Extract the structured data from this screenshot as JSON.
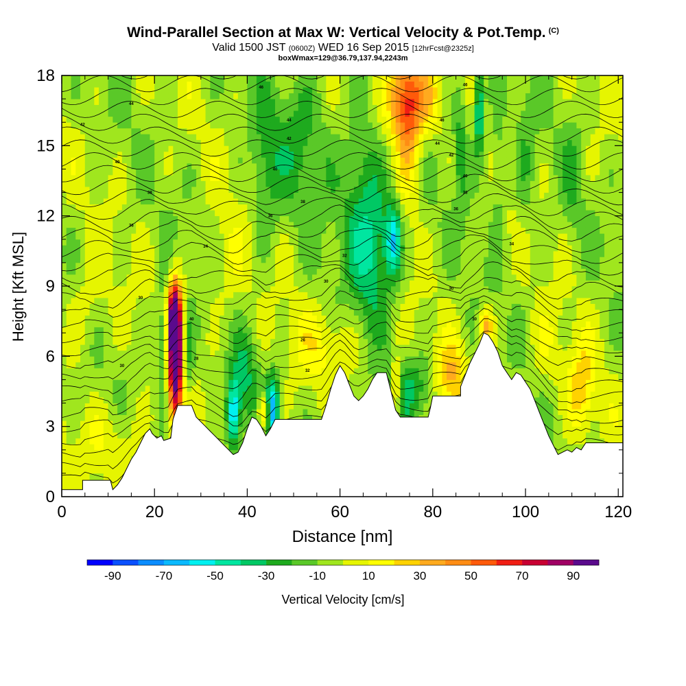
{
  "header": {
    "title": "Wind-Parallel Section at Max W: Vertical Velocity & Pot.Temp.",
    "title_suffix": "(C)",
    "subtitle_a": "Valid 1500 JST",
    "subtitle_b": "(0600Z)",
    "subtitle_c": "WED 16 Sep 2015",
    "subtitle_d": "[12hrFcst@2325z]",
    "box_info": "boxWmax=129@36.79,137.94,2243m"
  },
  "chart_data": {
    "type": "heatmap",
    "xlabel": "Distance [nm]",
    "ylabel": "Height [Kft MSL]",
    "xlim": [
      0,
      121
    ],
    "ylim": [
      0,
      18
    ],
    "x_ticks": [
      0,
      20,
      40,
      60,
      80,
      100,
      120
    ],
    "y_ticks": [
      0,
      3,
      6,
      9,
      12,
      15,
      18
    ],
    "colorbar": {
      "label": "Vertical Velocity [cm/s]",
      "tick_labels": [
        -90,
        -70,
        -50,
        -30,
        -10,
        10,
        30,
        50,
        70,
        90
      ],
      "bins": [
        {
          "range": [
            -100,
            -90
          ],
          "color": "#0000ff"
        },
        {
          "range": [
            -90,
            -80
          ],
          "color": "#0a50ff"
        },
        {
          "range": [
            -80,
            -70
          ],
          "color": "#0a8cff"
        },
        {
          "range": [
            -70,
            -60
          ],
          "color": "#0ab9ff"
        },
        {
          "range": [
            -60,
            -50
          ],
          "color": "#00f0f0"
        },
        {
          "range": [
            -50,
            -40
          ],
          "color": "#00e6a0"
        },
        {
          "range": [
            -40,
            -30
          ],
          "color": "#00c864"
        },
        {
          "range": [
            -30,
            -20
          ],
          "color": "#1eaa1e"
        },
        {
          "range": [
            -20,
            -10
          ],
          "color": "#5ac828"
        },
        {
          "range": [
            -10,
            0
          ],
          "color": "#a0e61e"
        },
        {
          "range": [
            0,
            10
          ],
          "color": "#e6f500"
        },
        {
          "range": [
            10,
            20
          ],
          "color": "#ffff00"
        },
        {
          "range": [
            20,
            30
          ],
          "color": "#ffd200"
        },
        {
          "range": [
            30,
            40
          ],
          "color": "#ffaa1e"
        },
        {
          "range": [
            40,
            50
          ],
          "color": "#ff8c14"
        },
        {
          "range": [
            50,
            60
          ],
          "color": "#ff5a0a"
        },
        {
          "range": [
            60,
            70
          ],
          "color": "#f01e14"
        },
        {
          "range": [
            70,
            80
          ],
          "color": "#c80032"
        },
        {
          "range": [
            80,
            90
          ],
          "color": "#a00064"
        },
        {
          "range": [
            90,
            100
          ],
          "color": "#5a0a8c"
        }
      ]
    },
    "terrain_profile_kft": [
      [
        0,
        0.3
      ],
      [
        4.5,
        0.3
      ],
      [
        4.5,
        0.7
      ],
      [
        10.5,
        0.7
      ],
      [
        11,
        0.3
      ],
      [
        12,
        0.5
      ],
      [
        13,
        0.8
      ],
      [
        14,
        1.2
      ],
      [
        15,
        1.6
      ],
      [
        16,
        1.9
      ],
      [
        17,
        2.3
      ],
      [
        18,
        2.7
      ],
      [
        19,
        2.9
      ],
      [
        19.5,
        2.7
      ],
      [
        20.5,
        2.5
      ],
      [
        21.5,
        2.6
      ],
      [
        22,
        2.4
      ],
      [
        23.5,
        2.5
      ],
      [
        24,
        3.3
      ],
      [
        25,
        3.9
      ],
      [
        28,
        3.9
      ],
      [
        29,
        3.4
      ],
      [
        30,
        3.2
      ],
      [
        31,
        3.0
      ],
      [
        32,
        2.8
      ],
      [
        33,
        2.6
      ],
      [
        34,
        2.4
      ],
      [
        35,
        2.2
      ],
      [
        36,
        2.0
      ],
      [
        37,
        1.8
      ],
      [
        38,
        1.9
      ],
      [
        39,
        2.3
      ],
      [
        40,
        2.9
      ],
      [
        41,
        3.4
      ],
      [
        42,
        3.3
      ],
      [
        43,
        3.0
      ],
      [
        44,
        2.6
      ],
      [
        45,
        2.9
      ],
      [
        46,
        3.3
      ],
      [
        56,
        3.3
      ],
      [
        57,
        3.9
      ],
      [
        58,
        4.6
      ],
      [
        59,
        5.2
      ],
      [
        60,
        5.6
      ],
      [
        61,
        5.3
      ],
      [
        62,
        4.8
      ],
      [
        63,
        4.3
      ],
      [
        64,
        4.1
      ],
      [
        65,
        4.3
      ],
      [
        66,
        4.6
      ],
      [
        67,
        5.0
      ],
      [
        68,
        5.3
      ],
      [
        70,
        5.3
      ],
      [
        71,
        4.5
      ],
      [
        72,
        3.7
      ],
      [
        73,
        3.4
      ],
      [
        79,
        3.4
      ],
      [
        79.5,
        3.8
      ],
      [
        80,
        4.3
      ],
      [
        86,
        4.3
      ],
      [
        86,
        4.7
      ],
      [
        88,
        5.7
      ],
      [
        89,
        6.1
      ],
      [
        90,
        6.5
      ],
      [
        91,
        7.0
      ],
      [
        92,
        6.9
      ],
      [
        93,
        6.6
      ],
      [
        94,
        6.2
      ],
      [
        95,
        5.6
      ],
      [
        96,
        5.3
      ],
      [
        97,
        5.0
      ],
      [
        98,
        5.3
      ],
      [
        99,
        5.2
      ],
      [
        100,
        4.9
      ],
      [
        101,
        4.6
      ],
      [
        102,
        4.1
      ],
      [
        103,
        3.6
      ],
      [
        104,
        3.1
      ],
      [
        105,
        2.6
      ],
      [
        106,
        2.2
      ],
      [
        107,
        1.8
      ],
      [
        108,
        1.9
      ],
      [
        109,
        2.0
      ],
      [
        110,
        1.9
      ],
      [
        111,
        2.1
      ],
      [
        112,
        2.0
      ],
      [
        113,
        2.3
      ],
      [
        121,
        2.3
      ]
    ],
    "theta_contour_labels_c": [
      {
        "x": 43,
        "y": 17.5,
        "label": "46"
      },
      {
        "x": 15,
        "y": 16.8,
        "label": "44"
      },
      {
        "x": 87,
        "y": 17.6,
        "label": "46"
      },
      {
        "x": 4.5,
        "y": 15.9,
        "label": "42"
      },
      {
        "x": 49,
        "y": 16.1,
        "label": "44"
      },
      {
        "x": 82,
        "y": 16.1,
        "label": "46"
      },
      {
        "x": 49,
        "y": 15.3,
        "label": "42"
      },
      {
        "x": 81,
        "y": 15.1,
        "label": "44"
      },
      {
        "x": 84,
        "y": 14.6,
        "label": "42"
      },
      {
        "x": 12,
        "y": 14.3,
        "label": "40"
      },
      {
        "x": 46,
        "y": 14.0,
        "label": "40"
      },
      {
        "x": 87,
        "y": 13.7,
        "label": "40"
      },
      {
        "x": 19,
        "y": 13.0,
        "label": "38"
      },
      {
        "x": 52,
        "y": 12.6,
        "label": "38"
      },
      {
        "x": 87,
        "y": 13.0,
        "label": "38"
      },
      {
        "x": 85,
        "y": 12.3,
        "label": "36"
      },
      {
        "x": 15,
        "y": 11.6,
        "label": "36"
      },
      {
        "x": 45,
        "y": 12.0,
        "label": "36"
      },
      {
        "x": 31,
        "y": 10.7,
        "label": "34"
      },
      {
        "x": 97,
        "y": 10.8,
        "label": "34"
      },
      {
        "x": 61,
        "y": 10.3,
        "label": "32"
      },
      {
        "x": 57,
        "y": 9.2,
        "label": "30"
      },
      {
        "x": 84,
        "y": 8.9,
        "label": "30"
      },
      {
        "x": 17,
        "y": 8.5,
        "label": "30"
      },
      {
        "x": 28,
        "y": 7.6,
        "label": "40"
      },
      {
        "x": 89,
        "y": 7.6,
        "label": "30"
      },
      {
        "x": 52,
        "y": 6.7,
        "label": "26"
      },
      {
        "x": 29,
        "y": 5.9,
        "label": "28"
      },
      {
        "x": 13,
        "y": 5.6,
        "label": "30"
      },
      {
        "x": 53,
        "y": 5.4,
        "label": "32"
      }
    ]
  }
}
